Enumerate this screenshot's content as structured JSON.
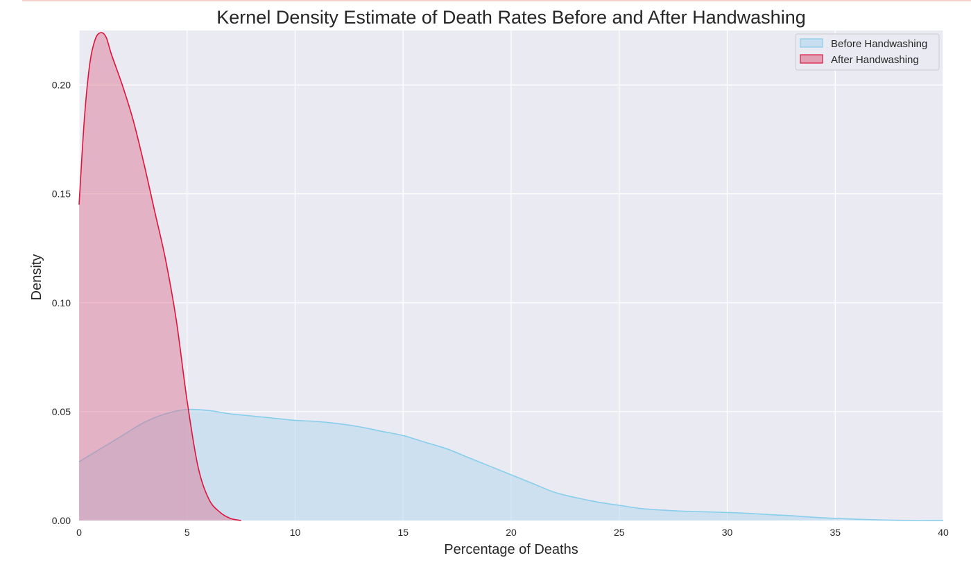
{
  "chart_data": {
    "type": "area",
    "title": "Kernel Density Estimate of Death Rates Before and After Handwashing",
    "xlabel": "Percentage of Deaths",
    "ylabel": "Density",
    "xlim": [
      0,
      40
    ],
    "ylim": [
      0,
      0.225
    ],
    "xticks": [
      0,
      5,
      10,
      15,
      20,
      25,
      30,
      35,
      40
    ],
    "xtick_labels": [
      "0",
      "5",
      "10",
      "15",
      "20",
      "25",
      "30",
      "35",
      "40"
    ],
    "yticks": [
      0,
      0.05,
      0.1,
      0.15,
      0.2
    ],
    "ytick_labels": [
      "0.00",
      "0.05",
      "0.10",
      "0.15",
      "0.20"
    ],
    "grid": true,
    "legend_position": "top-right",
    "series": [
      {
        "name": "Before Handwashing",
        "line_color": "#87ceeb",
        "fill_color": "#b9d9ef",
        "fill_opacity": 0.6,
        "x": [
          0,
          1,
          2,
          3,
          4,
          5,
          6,
          7,
          8,
          9,
          10,
          11,
          12,
          13,
          14,
          15,
          16,
          17,
          18,
          19,
          20,
          21,
          22,
          23,
          24,
          25,
          26,
          27,
          28,
          29,
          30,
          31,
          32,
          33,
          34,
          35,
          36,
          37,
          38,
          39,
          40
        ],
        "y": [
          0.027,
          0.033,
          0.039,
          0.045,
          0.049,
          0.051,
          0.0505,
          0.049,
          0.048,
          0.047,
          0.046,
          0.0455,
          0.0445,
          0.043,
          0.041,
          0.039,
          0.036,
          0.033,
          0.029,
          0.025,
          0.021,
          0.017,
          0.013,
          0.0105,
          0.0085,
          0.007,
          0.0055,
          0.0048,
          0.0043,
          0.004,
          0.0037,
          0.0033,
          0.0027,
          0.0022,
          0.0015,
          0.001,
          0.0006,
          0.0003,
          0.0001,
          0.0,
          0.0
        ]
      },
      {
        "name": "After Handwashing",
        "line_color": "#dc143c",
        "fill_color": "#dc6e8c",
        "fill_opacity": 0.45,
        "x": [
          0,
          0.25,
          0.5,
          0.75,
          1.0,
          1.25,
          1.5,
          2.0,
          2.5,
          3.0,
          3.5,
          4.0,
          4.5,
          5.0,
          5.5,
          6.0,
          6.5,
          7.0,
          7.5
        ],
        "y": [
          0.145,
          0.185,
          0.21,
          0.221,
          0.224,
          0.222,
          0.214,
          0.2,
          0.184,
          0.164,
          0.142,
          0.12,
          0.092,
          0.055,
          0.025,
          0.01,
          0.004,
          0.001,
          0.0
        ]
      }
    ]
  }
}
